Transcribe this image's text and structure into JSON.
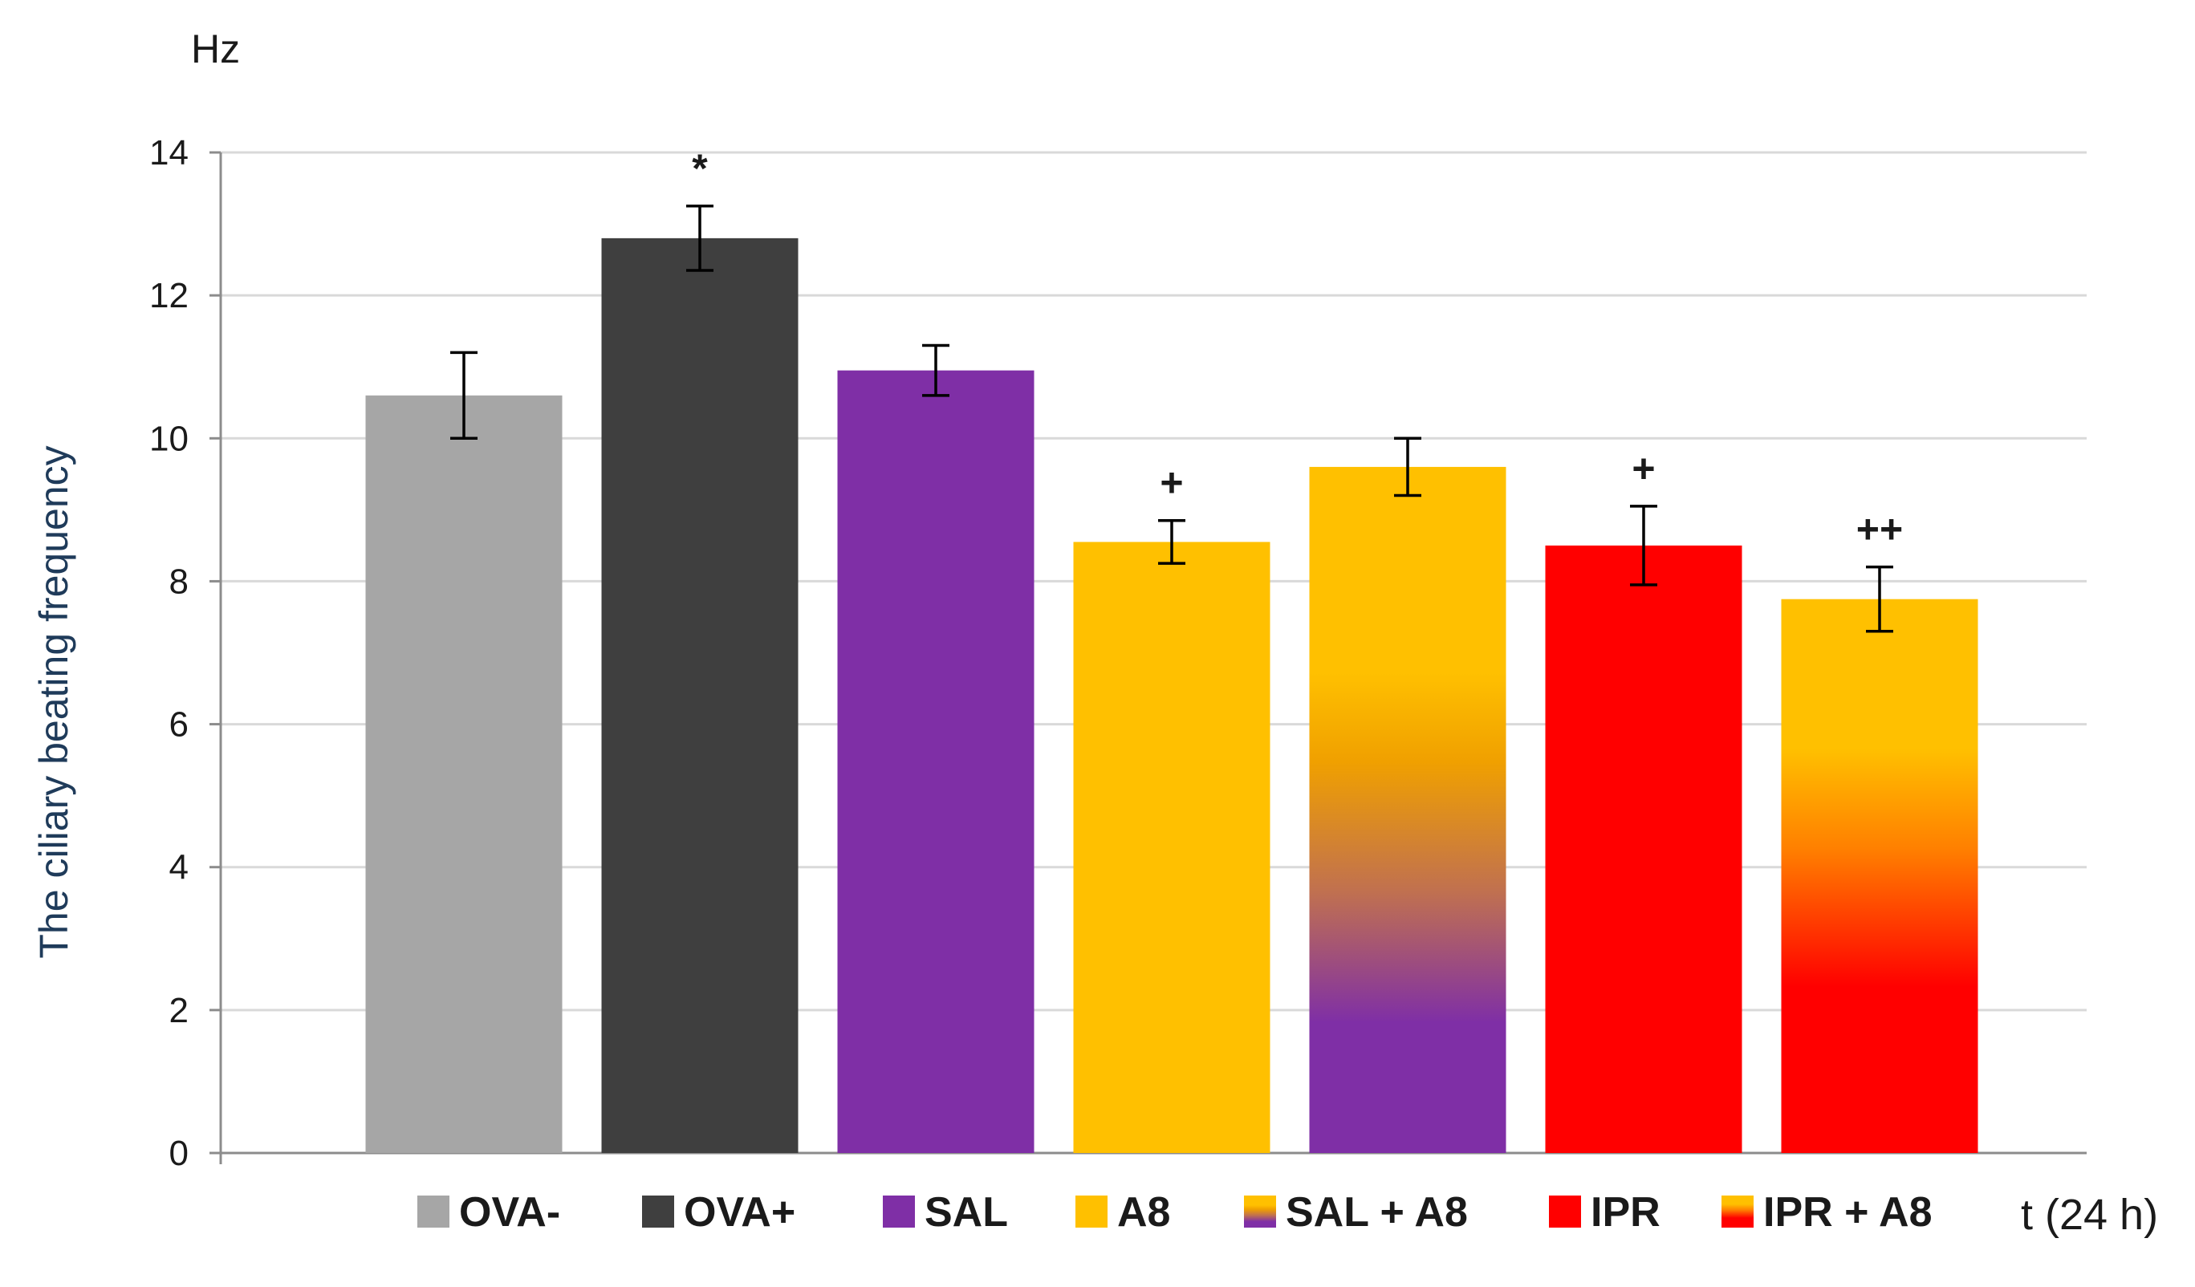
{
  "chart_data": {
    "type": "bar",
    "y_unit": "Hz",
    "ylabel": "The ciliary beating frequency",
    "x_unit": "t (24 h)",
    "ylim": [
      0,
      14
    ],
    "yticks": [
      0,
      2,
      4,
      6,
      8,
      10,
      12,
      14
    ],
    "grid": true,
    "legend_position": "bottom",
    "categories": [
      "OVA-",
      "OVA+",
      "SAL",
      "A8",
      "SAL + A8",
      "IPR",
      "IPR + A8"
    ],
    "values": [
      10.6,
      12.8,
      10.95,
      8.55,
      9.6,
      8.5,
      7.75
    ],
    "errors": [
      0.6,
      0.45,
      0.35,
      0.3,
      0.4,
      0.55,
      0.45
    ],
    "annotations": [
      "",
      "*",
      "",
      "+",
      "",
      "+",
      "++"
    ],
    "fills": [
      {
        "type": "solid",
        "color": "#a6a6a6"
      },
      {
        "type": "solid",
        "color": "#3f3f3f"
      },
      {
        "type": "solid",
        "color": "#7f2fa6"
      },
      {
        "type": "solid",
        "color": "#ffc000"
      },
      {
        "type": "gradient",
        "colors": [
          "#ffc000",
          "#ffc000",
          "#f0a000",
          "#c07050",
          "#7f2fa6",
          "#7f2fa6"
        ],
        "stops": [
          0,
          0.3,
          0.43,
          0.62,
          0.81,
          1
        ]
      },
      {
        "type": "solid",
        "color": "#ff0000"
      },
      {
        "type": "gradient",
        "colors": [
          "#ffc000",
          "#ffc000",
          "#ff8000",
          "#ff0000",
          "#ff0000"
        ],
        "stops": [
          0,
          0.27,
          0.45,
          0.7,
          1
        ]
      }
    ]
  }
}
